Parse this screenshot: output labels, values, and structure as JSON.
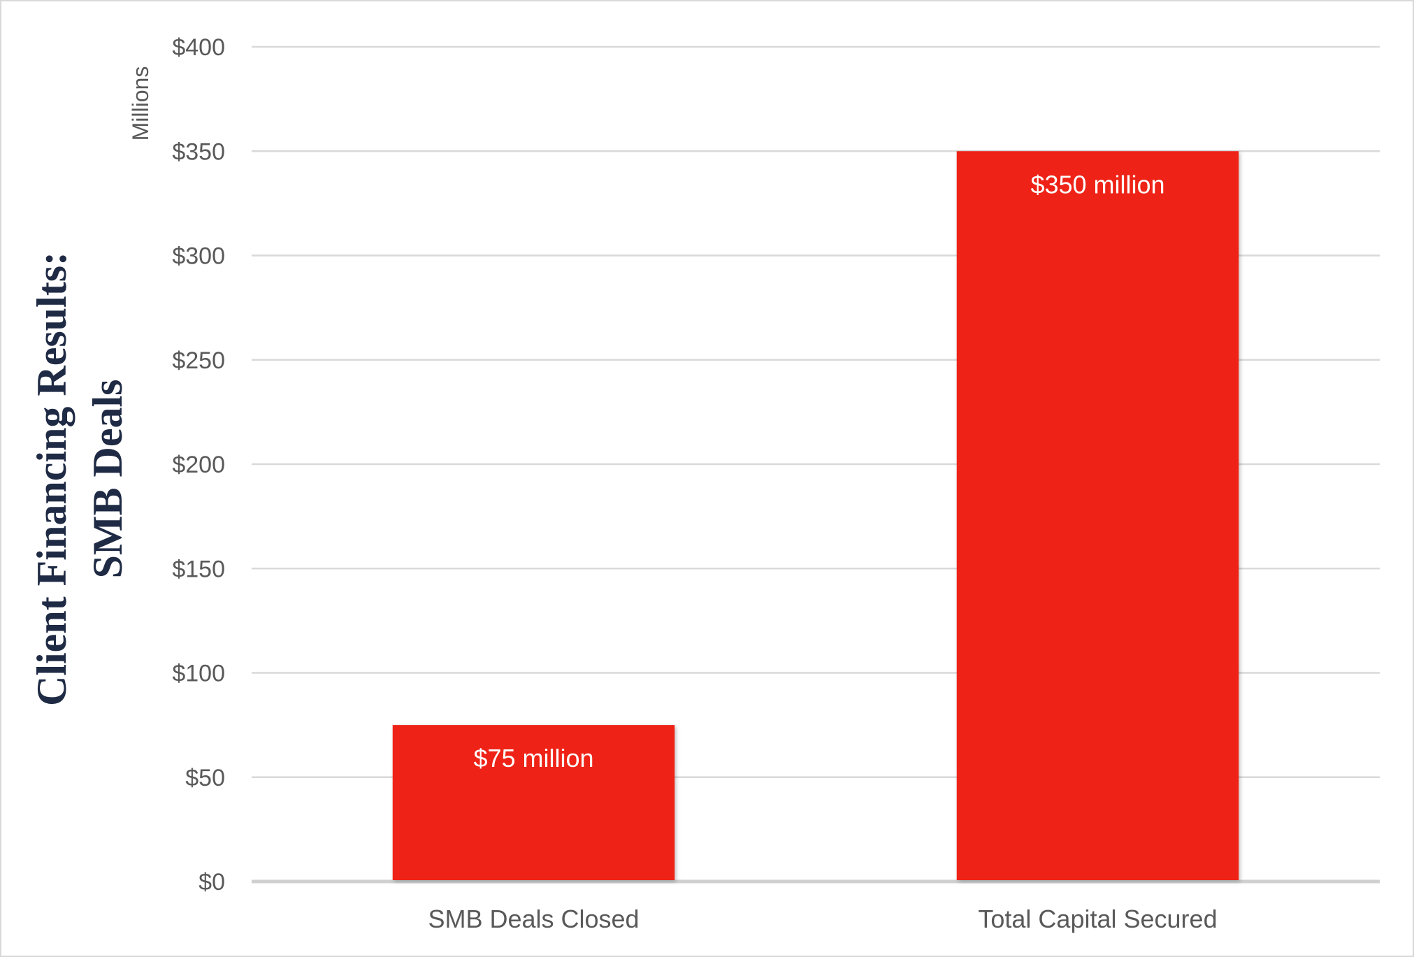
{
  "chart_data": {
    "type": "bar",
    "title_lines": [
      "Client Financing Results:",
      "SMB Deals"
    ],
    "display_unit": "Millions",
    "categories": [
      "SMB Deals Closed",
      "Total Capital Secured"
    ],
    "values": [
      75,
      350
    ],
    "data_labels": [
      "$75 million",
      "$350 million"
    ],
    "ylim": [
      0,
      400
    ],
    "yticks": [
      0,
      50,
      100,
      150,
      200,
      250,
      300,
      350,
      400
    ],
    "ytick_labels": [
      "$0",
      "$50",
      "$100",
      "$150",
      "$200",
      "$250",
      "$300",
      "$350",
      "$400"
    ],
    "grid": true,
    "legend": "none",
    "bar_color": "#ee2116",
    "grid_color": "#d9d9d9"
  }
}
